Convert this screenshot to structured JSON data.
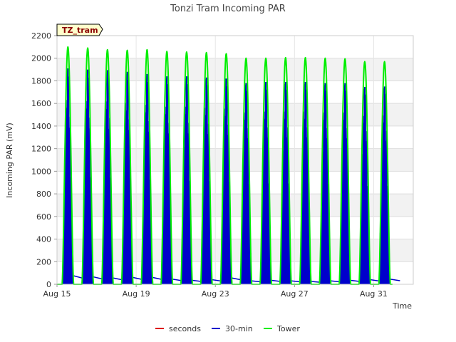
{
  "chart_data": {
    "type": "line",
    "title": "Tonzi Tram Incoming PAR",
    "xlabel": "Time",
    "ylabel": "Incoming PAR (mV)",
    "site_label": "TZ_tram",
    "xlim": [
      "Aug 15",
      "Sep 2"
    ],
    "x_ticks": [
      "Aug 15",
      "Aug 19",
      "Aug 23",
      "Aug 27",
      "Aug 31"
    ],
    "ylim": [
      0,
      2200
    ],
    "y_ticks": [
      0,
      200,
      400,
      600,
      800,
      1000,
      1200,
      1400,
      1600,
      1800,
      2000,
      2200
    ],
    "grid": true,
    "legend_position": "bottom",
    "day_peaks": {
      "dates": [
        "Aug 15",
        "Aug 16",
        "Aug 17",
        "Aug 18",
        "Aug 19",
        "Aug 20",
        "Aug 21",
        "Aug 22",
        "Aug 23",
        "Aug 24",
        "Aug 25",
        "Aug 26",
        "Aug 27",
        "Aug 28",
        "Aug 29",
        "Aug 30",
        "Aug 31"
      ],
      "tower_peak": [
        2100,
        2090,
        2075,
        2070,
        2075,
        2060,
        2055,
        2050,
        2040,
        2000,
        2000,
        2005,
        2005,
        2000,
        1995,
        1970,
        1970
      ],
      "min30_peak": [
        1910,
        1900,
        1895,
        1880,
        1860,
        1840,
        1840,
        1830,
        1820,
        1780,
        1790,
        1790,
        1790,
        1780,
        1780,
        1745,
        1750
      ],
      "min30_night": [
        75,
        65,
        55,
        60,
        60,
        45,
        35,
        40,
        55,
        30,
        35,
        30,
        25,
        30,
        35,
        40,
        45
      ]
    },
    "series": [
      {
        "name": "seconds",
        "color": "#dd0000"
      },
      {
        "name": "30-min",
        "color": "#0000cc"
      },
      {
        "name": "Tower",
        "color": "#00ee00"
      }
    ]
  }
}
